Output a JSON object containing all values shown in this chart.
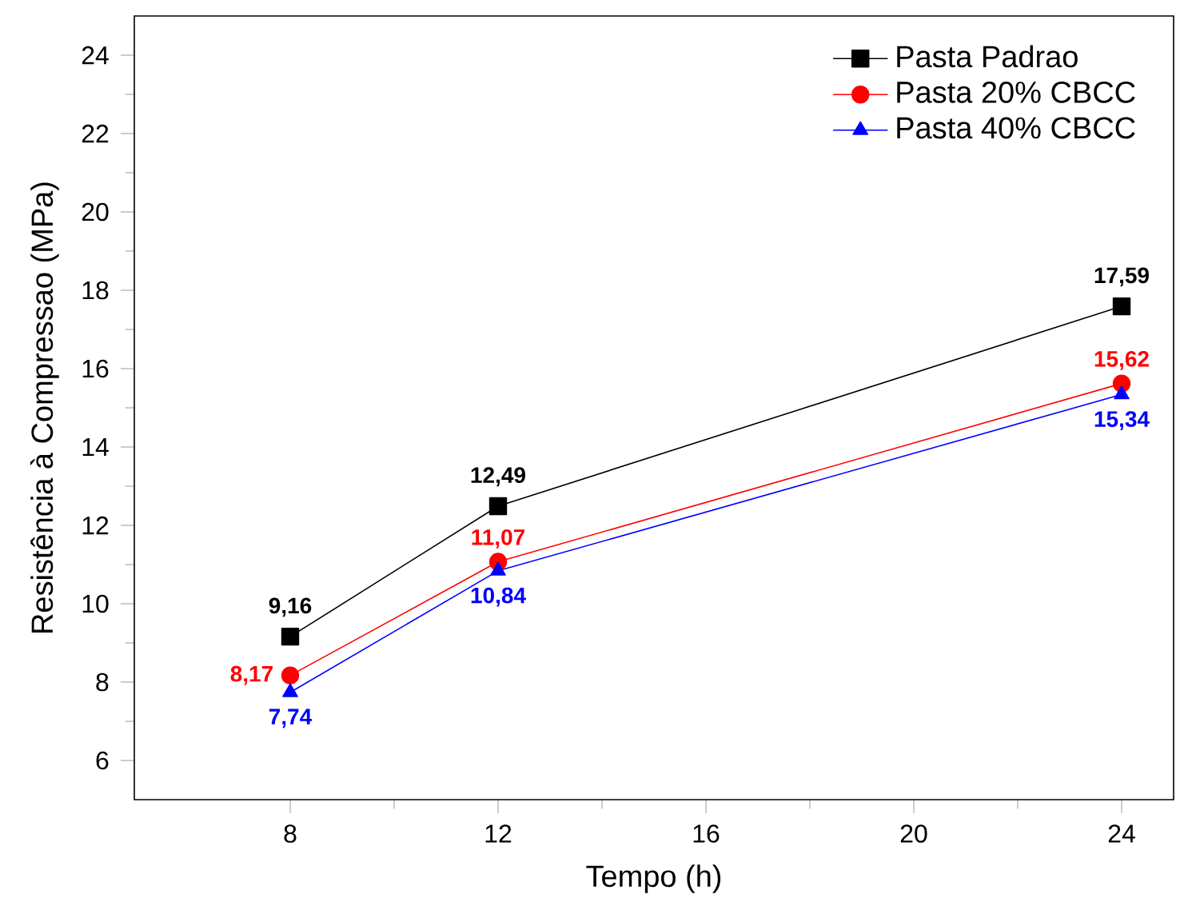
{
  "chart_data": {
    "type": "line",
    "xlabel": "Tempo (h)",
    "ylabel": "Resistência à Compressao (MPa)",
    "x": [
      8,
      12,
      24
    ],
    "series": [
      {
        "name": "Pasta Padrao",
        "color": "#000000",
        "marker": "square",
        "values": [
          9.16,
          12.49,
          17.59
        ],
        "value_labels": [
          "9,16",
          "12,49",
          "17,59"
        ]
      },
      {
        "name": "Pasta 20% CBCC",
        "color": "#ff0000",
        "marker": "circle",
        "values": [
          8.17,
          11.07,
          15.62
        ],
        "value_labels": [
          "8,17",
          "11,07",
          "15,62"
        ]
      },
      {
        "name": "Pasta 40% CBCC",
        "color": "#0000ff",
        "marker": "triangle",
        "values": [
          7.74,
          10.84,
          15.34
        ],
        "value_labels": [
          "7,74",
          "10,84",
          "15,34"
        ]
      }
    ],
    "xlim": [
      5,
      25
    ],
    "xticks": [
      8,
      12,
      16,
      20,
      24
    ],
    "ylim": [
      5,
      25
    ],
    "yticks": [
      6,
      8,
      10,
      12,
      14,
      16,
      18,
      20,
      22,
      24
    ],
    "grid": false,
    "legend": "top right",
    "line_style": "solid"
  }
}
